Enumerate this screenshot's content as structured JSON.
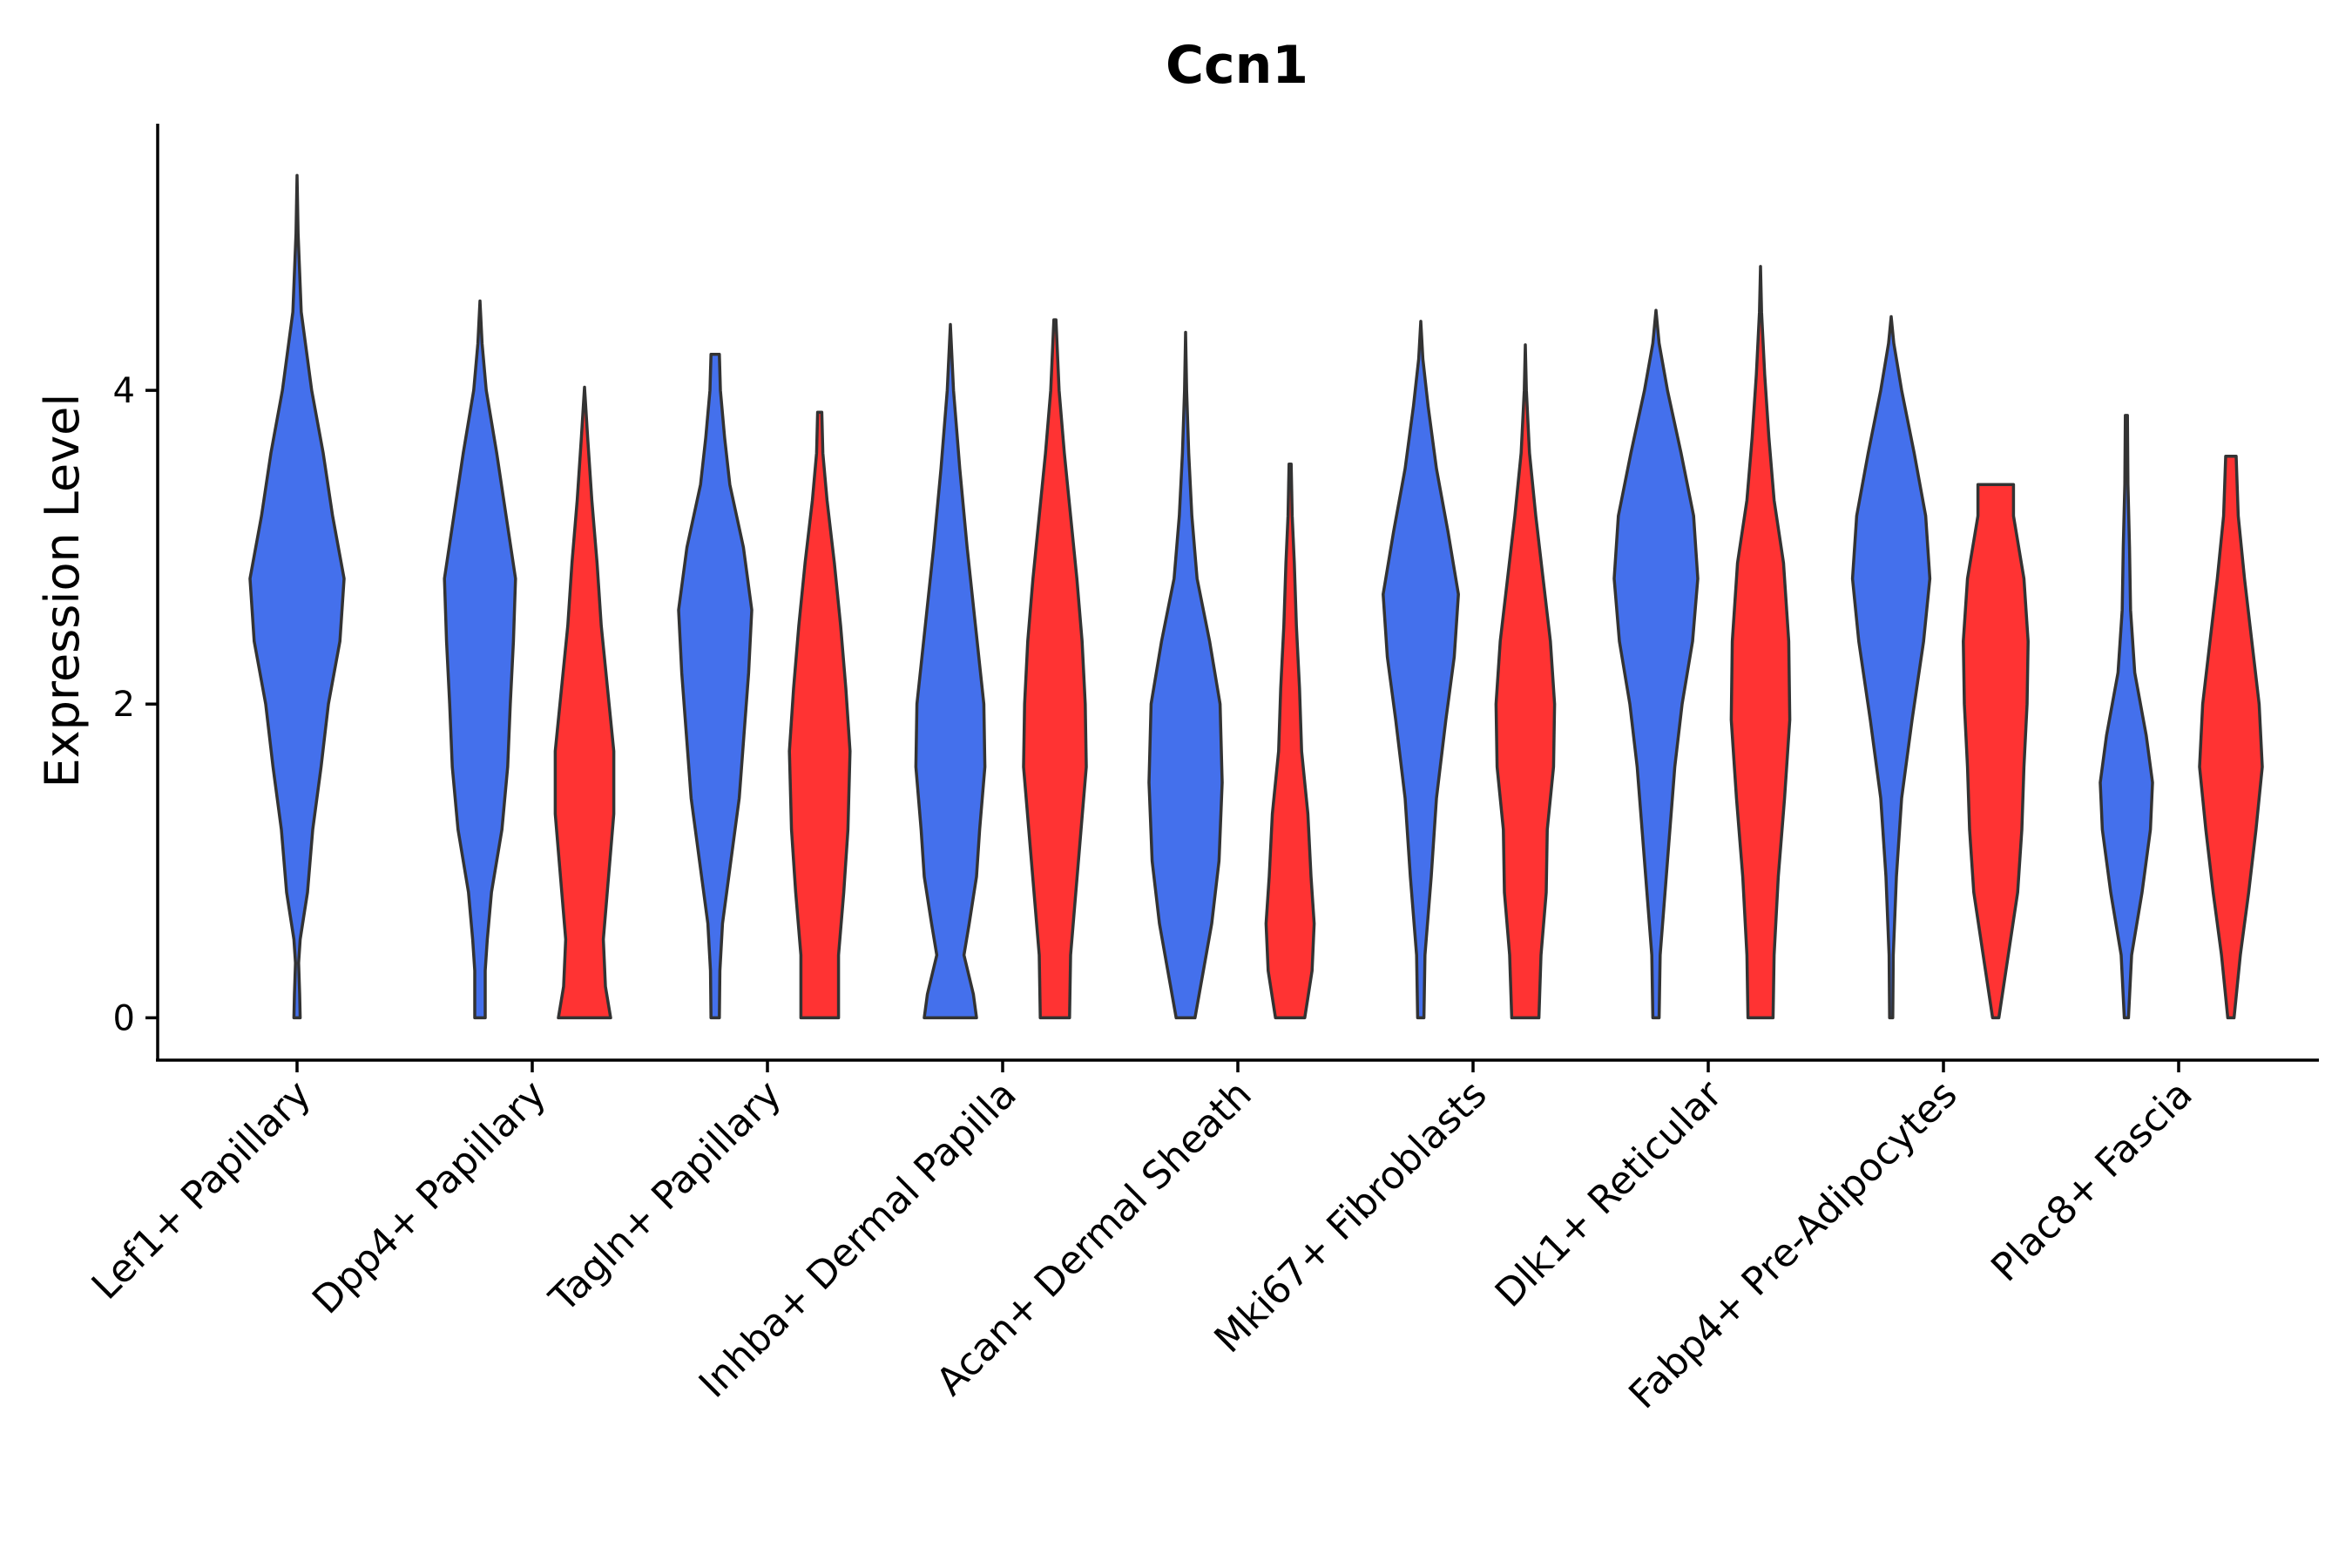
{
  "chart_data": {
    "type": "violin",
    "title": "Ccn1",
    "xlabel": "",
    "ylabel": "Expression Level",
    "ylim": [
      -0.27,
      5.7
    ],
    "yticks": [
      0,
      2,
      4
    ],
    "categories": [
      "Lef1+ Papillary",
      "Dpp4+ Papillary",
      "Tagln+ Papillary",
      "Inhba+ Dermal Papilla",
      "Acan+ Dermal Sheath",
      "Mki67+ Fibroblasts",
      "Dlk1+ Reticular",
      "Fabp4+ Pre-Adipocytes",
      "Plac8+ Fascia"
    ],
    "colors": {
      "group1": "#4470EC",
      "group2": "#FF3333",
      "outline": "#333333"
    },
    "series": [
      {
        "name": "group1",
        "color": "#4470EC",
        "violins": [
          {
            "max": 5.37,
            "profile": [
              [
                0,
                0.06
              ],
              [
                0.15,
                0.05
              ],
              [
                0.35,
                0.03
              ],
              [
                0.5,
                0.06
              ],
              [
                0.8,
                0.2
              ],
              [
                1.2,
                0.3
              ],
              [
                1.6,
                0.46
              ],
              [
                2.0,
                0.6
              ],
              [
                2.4,
                0.82
              ],
              [
                2.8,
                0.9
              ],
              [
                3.2,
                0.68
              ],
              [
                3.6,
                0.5
              ],
              [
                4.0,
                0.28
              ],
              [
                4.5,
                0.08
              ],
              [
                5.0,
                0.02
              ],
              [
                5.37,
                0.0
              ]
            ]
          },
          {
            "max": 4.57,
            "profile": [
              [
                0,
                0.1
              ],
              [
                0.3,
                0.1
              ],
              [
                0.5,
                0.14
              ],
              [
                0.8,
                0.22
              ],
              [
                1.2,
                0.42
              ],
              [
                1.6,
                0.53
              ],
              [
                2.0,
                0.58
              ],
              [
                2.4,
                0.64
              ],
              [
                2.8,
                0.68
              ],
              [
                3.2,
                0.5
              ],
              [
                3.6,
                0.32
              ],
              [
                4.0,
                0.12
              ],
              [
                4.3,
                0.04
              ],
              [
                4.57,
                0.0
              ]
            ]
          },
          {
            "max": 4.23,
            "profile": [
              [
                0,
                0.08
              ],
              [
                0.3,
                0.09
              ],
              [
                0.6,
                0.14
              ],
              [
                1.0,
                0.3
              ],
              [
                1.4,
                0.46
              ],
              [
                1.8,
                0.55
              ],
              [
                2.2,
                0.64
              ],
              [
                2.6,
                0.7
              ],
              [
                3.0,
                0.54
              ],
              [
                3.4,
                0.28
              ],
              [
                3.7,
                0.18
              ],
              [
                4.0,
                0.1
              ],
              [
                4.23,
                0.08
              ]
            ]
          },
          {
            "max": 4.42,
            "profile": [
              [
                0,
                0.5
              ],
              [
                0.15,
                0.44
              ],
              [
                0.4,
                0.26
              ],
              [
                0.6,
                0.36
              ],
              [
                0.9,
                0.5
              ],
              [
                1.2,
                0.56
              ],
              [
                1.6,
                0.66
              ],
              [
                2.0,
                0.64
              ],
              [
                2.5,
                0.48
              ],
              [
                3.0,
                0.32
              ],
              [
                3.5,
                0.18
              ],
              [
                4.0,
                0.06
              ],
              [
                4.42,
                0.0
              ]
            ]
          },
          {
            "max": 4.37,
            "profile": [
              [
                0,
                0.18
              ],
              [
                0.3,
                0.34
              ],
              [
                0.6,
                0.5
              ],
              [
                1.0,
                0.64
              ],
              [
                1.5,
                0.7
              ],
              [
                2.0,
                0.66
              ],
              [
                2.4,
                0.46
              ],
              [
                2.8,
                0.22
              ],
              [
                3.2,
                0.12
              ],
              [
                3.6,
                0.06
              ],
              [
                4.0,
                0.02
              ],
              [
                4.37,
                0.0
              ]
            ]
          },
          {
            "max": 4.44,
            "profile": [
              [
                0,
                0.06
              ],
              [
                0.4,
                0.08
              ],
              [
                0.9,
                0.2
              ],
              [
                1.4,
                0.3
              ],
              [
                1.9,
                0.48
              ],
              [
                2.3,
                0.64
              ],
              [
                2.7,
                0.72
              ],
              [
                3.1,
                0.52
              ],
              [
                3.5,
                0.3
              ],
              [
                3.9,
                0.14
              ],
              [
                4.2,
                0.04
              ],
              [
                4.44,
                0.0
              ]
            ]
          },
          {
            "max": 4.51,
            "profile": [
              [
                0,
                0.06
              ],
              [
                0.4,
                0.08
              ],
              [
                1.0,
                0.22
              ],
              [
                1.6,
                0.36
              ],
              [
                2.0,
                0.5
              ],
              [
                2.4,
                0.7
              ],
              [
                2.8,
                0.8
              ],
              [
                3.2,
                0.72
              ],
              [
                3.6,
                0.48
              ],
              [
                4.0,
                0.22
              ],
              [
                4.3,
                0.06
              ],
              [
                4.51,
                0.0
              ]
            ]
          },
          {
            "max": 4.47,
            "profile": [
              [
                0,
                0.03
              ],
              [
                0.4,
                0.04
              ],
              [
                0.9,
                0.1
              ],
              [
                1.4,
                0.2
              ],
              [
                1.9,
                0.4
              ],
              [
                2.4,
                0.62
              ],
              [
                2.8,
                0.74
              ],
              [
                3.2,
                0.66
              ],
              [
                3.6,
                0.44
              ],
              [
                4.0,
                0.2
              ],
              [
                4.3,
                0.05
              ],
              [
                4.47,
                0.0
              ]
            ]
          },
          {
            "max": 3.84,
            "profile": [
              [
                0,
                0.04
              ],
              [
                0.4,
                0.1
              ],
              [
                0.8,
                0.3
              ],
              [
                1.2,
                0.46
              ],
              [
                1.5,
                0.5
              ],
              [
                1.8,
                0.38
              ],
              [
                2.2,
                0.16
              ],
              [
                2.6,
                0.08
              ],
              [
                3.0,
                0.06
              ],
              [
                3.4,
                0.03
              ],
              [
                3.84,
                0.02
              ]
            ]
          }
        ]
      },
      {
        "name": "group2",
        "color": "#FF3333",
        "violins": [
          null,
          {
            "max": 4.02,
            "profile": [
              [
                0,
                0.5
              ],
              [
                0.2,
                0.4
              ],
              [
                0.5,
                0.36
              ],
              [
                0.9,
                0.46
              ],
              [
                1.3,
                0.56
              ],
              [
                1.7,
                0.56
              ],
              [
                2.1,
                0.44
              ],
              [
                2.5,
                0.32
              ],
              [
                2.9,
                0.24
              ],
              [
                3.3,
                0.14
              ],
              [
                3.7,
                0.06
              ],
              [
                4.02,
                0.0
              ]
            ]
          },
          {
            "max": 3.86,
            "profile": [
              [
                0,
                0.36
              ],
              [
                0.4,
                0.36
              ],
              [
                0.8,
                0.46
              ],
              [
                1.2,
                0.54
              ],
              [
                1.7,
                0.58
              ],
              [
                2.1,
                0.5
              ],
              [
                2.5,
                0.4
              ],
              [
                2.9,
                0.28
              ],
              [
                3.3,
                0.14
              ],
              [
                3.6,
                0.06
              ],
              [
                3.86,
                0.04
              ]
            ]
          },
          {
            "max": 4.45,
            "profile": [
              [
                0,
                0.28
              ],
              [
                0.4,
                0.3
              ],
              [
                0.8,
                0.4
              ],
              [
                1.2,
                0.5
              ],
              [
                1.6,
                0.6
              ],
              [
                2.0,
                0.58
              ],
              [
                2.4,
                0.52
              ],
              [
                2.8,
                0.42
              ],
              [
                3.2,
                0.3
              ],
              [
                3.6,
                0.18
              ],
              [
                4.0,
                0.08
              ],
              [
                4.45,
                0.02
              ]
            ]
          },
          {
            "max": 3.53,
            "profile": [
              [
                0,
                0.28
              ],
              [
                0.3,
                0.42
              ],
              [
                0.6,
                0.46
              ],
              [
                0.9,
                0.4
              ],
              [
                1.3,
                0.34
              ],
              [
                1.7,
                0.22
              ],
              [
                2.1,
                0.18
              ],
              [
                2.5,
                0.12
              ],
              [
                2.9,
                0.08
              ],
              [
                3.2,
                0.04
              ],
              [
                3.53,
                0.02
              ]
            ]
          },
          {
            "max": 4.29,
            "profile": [
              [
                0,
                0.26
              ],
              [
                0.4,
                0.3
              ],
              [
                0.8,
                0.4
              ],
              [
                1.2,
                0.42
              ],
              [
                1.6,
                0.54
              ],
              [
                2.0,
                0.56
              ],
              [
                2.4,
                0.48
              ],
              [
                2.8,
                0.34
              ],
              [
                3.2,
                0.2
              ],
              [
                3.6,
                0.08
              ],
              [
                4.0,
                0.02
              ],
              [
                4.29,
                0.0
              ]
            ]
          },
          {
            "max": 4.79,
            "profile": [
              [
                0,
                0.24
              ],
              [
                0.4,
                0.26
              ],
              [
                0.9,
                0.34
              ],
              [
                1.4,
                0.46
              ],
              [
                1.9,
                0.56
              ],
              [
                2.4,
                0.54
              ],
              [
                2.9,
                0.44
              ],
              [
                3.3,
                0.26
              ],
              [
                3.7,
                0.16
              ],
              [
                4.1,
                0.08
              ],
              [
                4.5,
                0.02
              ],
              [
                4.79,
                0.0
              ]
            ]
          },
          {
            "max": 3.4,
            "profile": [
              [
                0,
                0.06
              ],
              [
                0.4,
                0.24
              ],
              [
                0.8,
                0.42
              ],
              [
                1.2,
                0.5
              ],
              [
                1.6,
                0.54
              ],
              [
                2.0,
                0.6
              ],
              [
                2.4,
                0.62
              ],
              [
                2.8,
                0.54
              ],
              [
                3.2,
                0.34
              ],
              [
                3.4,
                0.34
              ]
            ]
          },
          {
            "max": 3.58,
            "profile": [
              [
                0,
                0.06
              ],
              [
                0.4,
                0.18
              ],
              [
                0.8,
                0.34
              ],
              [
                1.2,
                0.48
              ],
              [
                1.6,
                0.6
              ],
              [
                2.0,
                0.54
              ],
              [
                2.4,
                0.4
              ],
              [
                2.8,
                0.26
              ],
              [
                3.2,
                0.14
              ],
              [
                3.58,
                0.1
              ]
            ]
          }
        ]
      }
    ]
  }
}
